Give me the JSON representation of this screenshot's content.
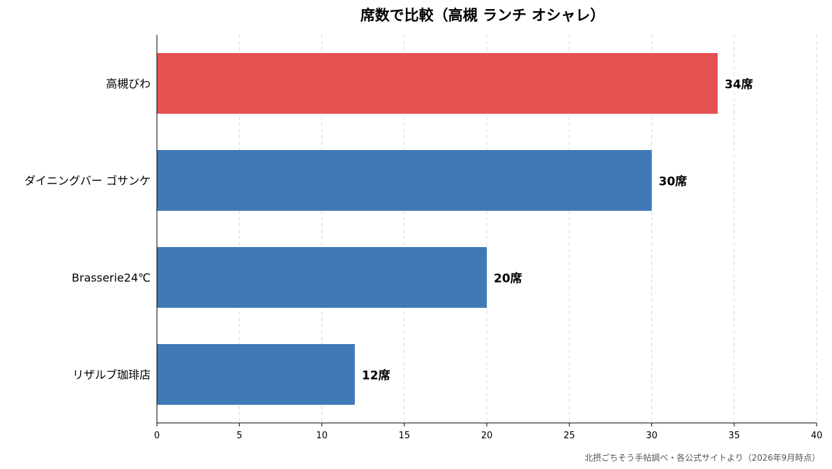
{
  "chart_data": {
    "type": "bar",
    "orientation": "horizontal",
    "title": "席数で比較（高槻 ランチ オシャレ）",
    "categories": [
      "高槻びわ",
      "ダイニングバー ゴサンケ",
      "Brasserie24℃",
      "リザルブ珈琲店"
    ],
    "values": [
      34,
      30,
      20,
      12
    ],
    "value_labels": [
      "34席",
      "30席",
      "20席",
      "12席"
    ],
    "bar_colors": [
      "#e65152",
      "#3f79b6",
      "#3f79b6",
      "#3f79b6"
    ],
    "xlim": [
      0,
      40
    ],
    "xticks": [
      0,
      5,
      10,
      15,
      20,
      25,
      30,
      35,
      40
    ],
    "xlabel": "",
    "ylabel": "",
    "grid": "x-dashed",
    "source_note": "北摂ごちそう手帖調べ・各公式サイトより（2026年9月時点）"
  }
}
